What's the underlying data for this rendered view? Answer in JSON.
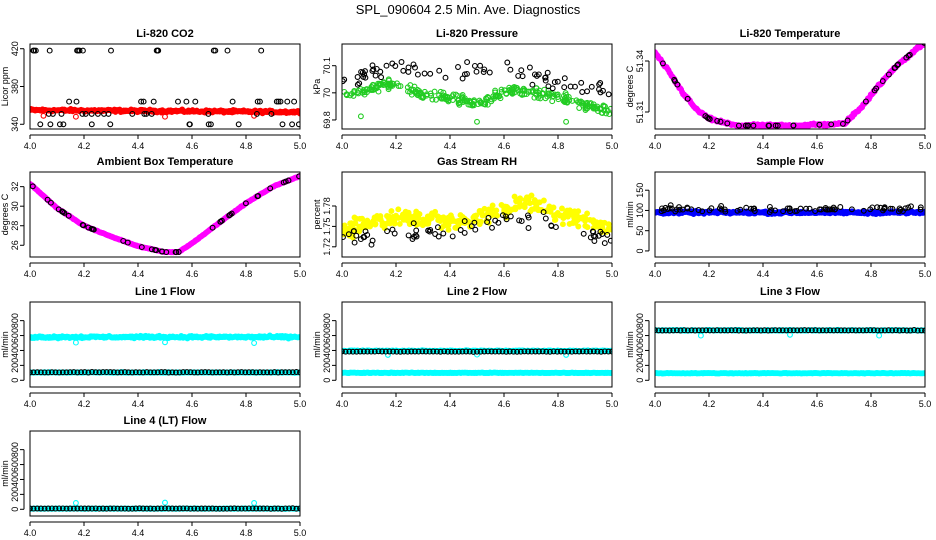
{
  "figure_title": "SPL_090604  2.5 Min. Ave. Diagnostics",
  "colors": {
    "black": "#000000",
    "red": "#ff0000",
    "green": "#22cc22",
    "magenta": "#ff00ff",
    "yellow": "#ffff00",
    "blue": "#0000ff",
    "cyan": "#00ffff"
  },
  "chart_data": [
    {
      "type": "scatter",
      "title": "Li-820 CO2",
      "ylabel": "Licor ppm",
      "xlim": [
        4.0,
        5.0
      ],
      "ylim": [
        335,
        425
      ],
      "x_ticks": [
        "4.0",
        "4.2",
        "4.4",
        "4.6",
        "4.8",
        "5.0"
      ],
      "y_ticks": [
        {
          "v": 340,
          "l": "340"
        },
        {
          "v": 380,
          "l": "380"
        },
        {
          "v": 420,
          "l": "420"
        }
      ],
      "series": [
        {
          "color": "red",
          "filled": true,
          "style": "band",
          "y0": 355,
          "y1": 353,
          "spread": 2,
          "outliers": [
            [
              4.05,
              349
            ],
            [
              4.17,
              348
            ],
            [
              4.5,
              348
            ],
            [
              4.83,
              349
            ]
          ]
        },
        {
          "color": "black",
          "filled": false,
          "style": "sparse",
          "levels": [
            418,
            364,
            351,
            340
          ],
          "n": 62
        }
      ]
    },
    {
      "type": "scatter",
      "title": "Li-820 Pressure",
      "ylabel": "kPa",
      "xlim": [
        4.0,
        5.0
      ],
      "ylim": [
        69.75,
        70.22
      ],
      "x_ticks": [
        "4.0",
        "4.2",
        "4.4",
        "4.6",
        "4.8",
        "5.0"
      ],
      "y_ticks": [
        {
          "v": 69.8,
          "l": "69.8"
        },
        {
          "v": 69.95,
          "l": "70"
        },
        {
          "v": 70.1,
          "l": "70.1"
        }
      ],
      "series": [
        {
          "color": "green",
          "filled": false,
          "style": "wave",
          "base": [
            [
              4.0,
              69.93
            ],
            [
              4.17,
              70.0
            ],
            [
              4.3,
              69.94
            ],
            [
              4.5,
              69.9
            ],
            [
              4.65,
              69.97
            ],
            [
              4.8,
              69.93
            ],
            [
              5.0,
              69.84
            ]
          ],
          "spread": 0.04,
          "outliers": [
            [
              4.07,
              69.82
            ],
            [
              4.5,
              69.79
            ],
            [
              4.83,
              69.79
            ]
          ]
        },
        {
          "color": "black",
          "filled": false,
          "style": "sparse_wave",
          "base": [
            [
              4.0,
              70.0
            ],
            [
              4.2,
              70.1
            ],
            [
              4.4,
              70.05
            ],
            [
              4.6,
              70.08
            ],
            [
              4.8,
              70.0
            ],
            [
              5.0,
              69.96
            ]
          ],
          "spread": 0.07,
          "n": 75
        }
      ]
    },
    {
      "type": "scatter",
      "title": "Li-820 Temperature",
      "ylabel": "degrees C",
      "xlim": [
        4.0,
        5.0
      ],
      "ylim": [
        51.3,
        51.35
      ],
      "x_ticks": [
        "4.0",
        "4.2",
        "4.4",
        "4.6",
        "4.8",
        "5.0"
      ],
      "y_ticks": [
        {
          "v": 51.31,
          "l": "51.31"
        },
        {
          "v": 51.34,
          "l": "51.34"
        }
      ],
      "series": [
        {
          "color": "magenta",
          "filled": true,
          "style": "curve",
          "base": [
            [
              4.0,
              51.345
            ],
            [
              4.05,
              51.334
            ],
            [
              4.1,
              51.322
            ],
            [
              4.15,
              51.312
            ],
            [
              4.2,
              51.306
            ],
            [
              4.3,
              51.302
            ],
            [
              4.5,
              51.302
            ],
            [
              4.7,
              51.303
            ],
            [
              4.76,
              51.312
            ],
            [
              4.82,
              51.324
            ],
            [
              4.9,
              51.338
            ],
            [
              5.0,
              51.351
            ]
          ],
          "spread": 0.0012
        },
        {
          "color": "black",
          "filled": false,
          "style": "curve_sparse",
          "base": [
            [
              4.0,
              51.345
            ],
            [
              4.05,
              51.334
            ],
            [
              4.1,
              51.322
            ],
            [
              4.15,
              51.312
            ],
            [
              4.2,
              51.306
            ],
            [
              4.3,
              51.302
            ],
            [
              4.5,
              51.302
            ],
            [
              4.7,
              51.303
            ],
            [
              4.76,
              51.312
            ],
            [
              4.82,
              51.324
            ],
            [
              4.9,
              51.338
            ],
            [
              5.0,
              51.351
            ]
          ],
          "n": 40
        }
      ]
    },
    {
      "type": "scatter",
      "title": "Ambient Box Temperature",
      "ylabel": "degrees C",
      "xlim": [
        4.0,
        5.0
      ],
      "ylim": [
        24.8,
        33.5
      ],
      "x_ticks": [
        "4.0",
        "4.2",
        "4.4",
        "4.6",
        "4.8",
        "5.0"
      ],
      "y_ticks": [
        {
          "v": 26,
          "l": "26"
        },
        {
          "v": 28,
          "l": "28"
        },
        {
          "v": 30,
          "l": "30"
        },
        {
          "v": 32,
          "l": "32"
        }
      ],
      "series": [
        {
          "color": "magenta",
          "filled": true,
          "style": "curve",
          "base": [
            [
              4.0,
              32.3
            ],
            [
              4.1,
              29.8
            ],
            [
              4.2,
              28.0
            ],
            [
              4.3,
              26.9
            ],
            [
              4.4,
              25.9
            ],
            [
              4.5,
              25.3
            ],
            [
              4.55,
              25.3
            ],
            [
              4.6,
              26.2
            ],
            [
              4.7,
              28.3
            ],
            [
              4.8,
              30.3
            ],
            [
              4.9,
              32.0
            ],
            [
              5.0,
              33.1
            ]
          ],
          "spread": 0.05
        },
        {
          "color": "black",
          "filled": false,
          "style": "curve_sparse",
          "base": [
            [
              4.0,
              32.3
            ],
            [
              4.1,
              29.8
            ],
            [
              4.2,
              28.0
            ],
            [
              4.3,
              26.9
            ],
            [
              4.4,
              25.9
            ],
            [
              4.5,
              25.3
            ],
            [
              4.55,
              25.3
            ],
            [
              4.6,
              26.2
            ],
            [
              4.7,
              28.3
            ],
            [
              4.8,
              30.3
            ],
            [
              4.9,
              32.0
            ],
            [
              5.0,
              33.1
            ]
          ],
          "n": 42
        }
      ]
    },
    {
      "type": "scatter",
      "title": "Gas Stream RH",
      "ylabel": "percent",
      "xlim": [
        4.0,
        5.0
      ],
      "ylim": [
        1.705,
        1.83
      ],
      "x_ticks": [
        "4.0",
        "4.2",
        "4.4",
        "4.6",
        "4.8",
        "5.0"
      ],
      "y_ticks": [
        {
          "v": 1.72,
          "l": "1.72"
        },
        {
          "v": 1.75,
          "l": "1.75"
        },
        {
          "v": 1.78,
          "l": "1.78"
        }
      ],
      "series": [
        {
          "color": "yellow",
          "filled": true,
          "style": "wave",
          "base": [
            [
              4.0,
              1.74
            ],
            [
              4.1,
              1.755
            ],
            [
              4.2,
              1.765
            ],
            [
              4.35,
              1.76
            ],
            [
              4.45,
              1.755
            ],
            [
              4.55,
              1.768
            ],
            [
              4.65,
              1.785
            ],
            [
              4.75,
              1.775
            ],
            [
              4.85,
              1.765
            ],
            [
              5.0,
              1.745
            ]
          ],
          "spread": 0.018
        },
        {
          "color": "black",
          "filled": false,
          "style": "sparse_wave",
          "base": [
            [
              4.0,
              1.735
            ],
            [
              4.2,
              1.74
            ],
            [
              4.4,
              1.74
            ],
            [
              4.6,
              1.765
            ],
            [
              4.8,
              1.755
            ],
            [
              5.0,
              1.73
            ]
          ],
          "spread": 0.02,
          "n": 70
        }
      ]
    },
    {
      "type": "scatter",
      "title": "Sample Flow",
      "ylabel": "ml/min",
      "xlim": [
        4.0,
        5.0
      ],
      "ylim": [
        -15,
        195
      ],
      "x_ticks": [
        "4.0",
        "4.2",
        "4.4",
        "4.6",
        "4.8",
        "5.0"
      ],
      "y_ticks": [
        {
          "v": 0,
          "l": "0"
        },
        {
          "v": 50,
          "l": "50"
        },
        {
          "v": 100,
          "l": "100"
        },
        {
          "v": 150,
          "l": "150"
        }
      ],
      "series": [
        {
          "color": "blue",
          "filled": true,
          "style": "band",
          "y0": 95,
          "y1": 95,
          "spread": 5
        },
        {
          "color": "black",
          "filled": false,
          "style": "sparse_wave",
          "base": [
            [
              4.0,
              104
            ],
            [
              5.0,
              104
            ]
          ],
          "spread": 10,
          "n": 80
        }
      ]
    },
    {
      "type": "scatter",
      "title": "Line 1 Flow",
      "ylabel": "ml/min",
      "xlim": [
        4.0,
        5.0
      ],
      "ylim": [
        -90,
        1050
      ],
      "x_ticks": [
        "4.0",
        "4.2",
        "4.4",
        "4.6",
        "4.8",
        "5.0"
      ],
      "y_ticks": [
        {
          "v": 0,
          "l": "0"
        },
        {
          "v": 200,
          "l": "200"
        },
        {
          "v": 400,
          "l": "400"
        },
        {
          "v": 600,
          "l": "600"
        },
        {
          "v": 800,
          "l": "800"
        }
      ],
      "series": [
        {
          "color": "cyan",
          "filled": true,
          "style": "band",
          "y0": 580,
          "y1": 580,
          "spread": 22,
          "outliers": [
            [
              4.17,
              505
            ],
            [
              4.5,
              510
            ],
            [
              4.83,
              500
            ]
          ]
        },
        {
          "color": "cyan",
          "filled": true,
          "style": "band",
          "y0": 105,
          "y1": 105,
          "spread": 6
        },
        {
          "color": "black",
          "filled": false,
          "style": "line_circles",
          "y": 108,
          "n": 75
        }
      ]
    },
    {
      "type": "scatter",
      "title": "Line 2 Flow",
      "ylabel": "ml/min",
      "xlim": [
        4.0,
        5.0
      ],
      "ylim": [
        -90,
        1050
      ],
      "x_ticks": [
        "4.0",
        "4.2",
        "4.4",
        "4.6",
        "4.8",
        "5.0"
      ],
      "y_ticks": [
        {
          "v": 0,
          "l": "0"
        },
        {
          "v": 200,
          "l": "200"
        },
        {
          "v": 400,
          "l": "400"
        },
        {
          "v": 600,
          "l": "600"
        },
        {
          "v": 800,
          "l": "800"
        }
      ],
      "series": [
        {
          "color": "cyan",
          "filled": true,
          "style": "band",
          "y0": 395,
          "y1": 395,
          "spread": 10,
          "outliers": [
            [
              4.17,
              340
            ],
            [
              4.5,
              345
            ],
            [
              4.83,
              340
            ]
          ]
        },
        {
          "color": "cyan",
          "filled": true,
          "style": "band",
          "y0": 100,
          "y1": 100,
          "spread": 6
        },
        {
          "color": "black",
          "filled": false,
          "style": "line_circles",
          "y": 385,
          "n": 75
        }
      ]
    },
    {
      "type": "scatter",
      "title": "Line 3 Flow",
      "ylabel": "ml/min",
      "xlim": [
        4.0,
        5.0
      ],
      "ylim": [
        -90,
        1050
      ],
      "x_ticks": [
        "4.0",
        "4.2",
        "4.4",
        "4.6",
        "4.8",
        "5.0"
      ],
      "y_ticks": [
        {
          "v": 0,
          "l": "0"
        },
        {
          "v": 200,
          "l": "200"
        },
        {
          "v": 400,
          "l": "400"
        },
        {
          "v": 600,
          "l": "600"
        },
        {
          "v": 800,
          "l": "800"
        }
      ],
      "series": [
        {
          "color": "cyan",
          "filled": true,
          "style": "band",
          "y0": 670,
          "y1": 670,
          "spread": 8,
          "outliers": [
            [
              4.17,
              600
            ],
            [
              4.5,
              610
            ],
            [
              4.83,
              600
            ]
          ]
        },
        {
          "color": "cyan",
          "filled": true,
          "style": "band",
          "y0": 95,
          "y1": 95,
          "spread": 5
        },
        {
          "color": "black",
          "filled": false,
          "style": "line_circles",
          "y": 670,
          "n": 75
        }
      ]
    },
    {
      "type": "scatter",
      "title": "Line 4 (LT) Flow",
      "ylabel": "ml/min",
      "xlim": [
        4.0,
        5.0
      ],
      "ylim": [
        -90,
        1050
      ],
      "x_ticks": [
        "4.0",
        "4.2",
        "4.4",
        "4.6",
        "4.8",
        "5.0"
      ],
      "y_ticks": [
        {
          "v": 0,
          "l": "0"
        },
        {
          "v": 200,
          "l": "200"
        },
        {
          "v": 400,
          "l": "400"
        },
        {
          "v": 600,
          "l": "600"
        },
        {
          "v": 800,
          "l": "800"
        }
      ],
      "series": [
        {
          "color": "cyan",
          "filled": true,
          "style": "band",
          "y0": 8,
          "y1": 8,
          "spread": 3,
          "outliers": [
            [
              4.17,
              85
            ],
            [
              4.5,
              90
            ],
            [
              4.83,
              85
            ]
          ]
        },
        {
          "color": "black",
          "filled": false,
          "style": "line_circles",
          "y": 10,
          "n": 75
        }
      ]
    }
  ]
}
